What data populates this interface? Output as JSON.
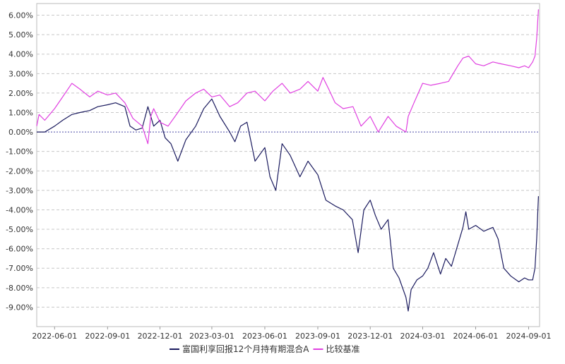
{
  "chart_data": {
    "type": "line",
    "title": "",
    "xlabel": "",
    "ylabel": "",
    "ylim": [
      -10,
      6.6
    ],
    "yticks": [
      6,
      5,
      4,
      3,
      2,
      1,
      0,
      -1,
      -2,
      -3,
      -4,
      -5,
      -6,
      -7,
      -8,
      -9
    ],
    "ytick_labels": [
      "6.00%",
      "5.00%",
      "4.00%",
      "3.00%",
      "2.00%",
      "1.00%",
      "0.00%",
      "-1.00%",
      "-2.00%",
      "-3.00%",
      "-4.00%",
      "-5.00%",
      "-6.00%",
      "-7.00%",
      "-8.00%",
      "-9.00%"
    ],
    "xlim": [
      "2022-05-01",
      "2024-09-20"
    ],
    "xticks": [
      "2022-06-01",
      "2022-09-01",
      "2022-12-01",
      "2023-03-01",
      "2023-06-01",
      "2023-09-01",
      "2023-12-01",
      "2024-03-01",
      "2024-06-01",
      "2024-09-01"
    ],
    "grid": true,
    "zero_line": true,
    "legend_position": "bottom",
    "series": [
      {
        "name": "富国利享回报12个月持有期混合A",
        "color": "#1a1a5e",
        "points": [
          [
            "2022-05-01",
            0.0
          ],
          [
            "2022-05-15",
            0.0
          ],
          [
            "2022-06-01",
            0.3
          ],
          [
            "2022-06-15",
            0.6
          ],
          [
            "2022-07-01",
            0.9
          ],
          [
            "2022-07-15",
            1.0
          ],
          [
            "2022-08-01",
            1.1
          ],
          [
            "2022-08-15",
            1.3
          ],
          [
            "2022-09-01",
            1.4
          ],
          [
            "2022-09-15",
            1.5
          ],
          [
            "2022-10-01",
            1.3
          ],
          [
            "2022-10-10",
            0.3
          ],
          [
            "2022-10-20",
            0.1
          ],
          [
            "2022-10-31",
            0.2
          ],
          [
            "2022-11-10",
            1.3
          ],
          [
            "2022-11-20",
            0.3
          ],
          [
            "2022-12-01",
            0.6
          ],
          [
            "2022-12-10",
            -0.3
          ],
          [
            "2022-12-20",
            -0.6
          ],
          [
            "2023-01-01",
            -1.5
          ],
          [
            "2023-01-15",
            -0.4
          ],
          [
            "2023-02-01",
            0.3
          ],
          [
            "2023-02-15",
            1.2
          ],
          [
            "2023-03-01",
            1.7
          ],
          [
            "2023-03-15",
            0.8
          ],
          [
            "2023-04-01",
            0.0
          ],
          [
            "2023-04-10",
            -0.5
          ],
          [
            "2023-04-20",
            0.3
          ],
          [
            "2023-05-01",
            0.5
          ],
          [
            "2023-05-15",
            -1.5
          ],
          [
            "2023-06-01",
            -0.8
          ],
          [
            "2023-06-10",
            -2.3
          ],
          [
            "2023-06-20",
            -3.0
          ],
          [
            "2023-07-01",
            -0.6
          ],
          [
            "2023-07-15",
            -1.2
          ],
          [
            "2023-08-01",
            -2.3
          ],
          [
            "2023-08-15",
            -1.5
          ],
          [
            "2023-09-01",
            -2.2
          ],
          [
            "2023-09-15",
            -3.5
          ],
          [
            "2023-10-01",
            -3.8
          ],
          [
            "2023-10-15",
            -4.0
          ],
          [
            "2023-10-31",
            -4.5
          ],
          [
            "2023-11-10",
            -6.2
          ],
          [
            "2023-11-20",
            -4.0
          ],
          [
            "2023-12-01",
            -3.5
          ],
          [
            "2023-12-10",
            -4.3
          ],
          [
            "2023-12-20",
            -5.0
          ],
          [
            "2024-01-01",
            -4.5
          ],
          [
            "2024-01-10",
            -7.0
          ],
          [
            "2024-01-20",
            -7.5
          ],
          [
            "2024-02-01",
            -8.5
          ],
          [
            "2024-02-05",
            -9.2
          ],
          [
            "2024-02-10",
            -8.1
          ],
          [
            "2024-02-20",
            -7.6
          ],
          [
            "2024-03-01",
            -7.4
          ],
          [
            "2024-03-10",
            -7.0
          ],
          [
            "2024-03-20",
            -6.2
          ],
          [
            "2024-04-01",
            -7.3
          ],
          [
            "2024-04-10",
            -6.5
          ],
          [
            "2024-04-20",
            -6.9
          ],
          [
            "2024-05-01",
            -5.8
          ],
          [
            "2024-05-10",
            -4.9
          ],
          [
            "2024-05-15",
            -4.1
          ],
          [
            "2024-05-20",
            -5.0
          ],
          [
            "2024-06-01",
            -4.8
          ],
          [
            "2024-06-15",
            -5.1
          ],
          [
            "2024-07-01",
            -4.9
          ],
          [
            "2024-07-10",
            -5.5
          ],
          [
            "2024-07-20",
            -7.0
          ],
          [
            "2024-08-01",
            -7.4
          ],
          [
            "2024-08-15",
            -7.7
          ],
          [
            "2024-08-25",
            -7.5
          ],
          [
            "2024-09-01",
            -7.6
          ],
          [
            "2024-09-08",
            -7.6
          ],
          [
            "2024-09-12",
            -7.0
          ],
          [
            "2024-09-15",
            -5.5
          ],
          [
            "2024-09-18",
            -3.3
          ]
        ]
      },
      {
        "name": "比较基准",
        "color": "#e040e0",
        "points": [
          [
            "2022-05-01",
            0.3
          ],
          [
            "2022-05-05",
            0.9
          ],
          [
            "2022-05-15",
            0.6
          ],
          [
            "2022-06-01",
            1.2
          ],
          [
            "2022-06-15",
            1.8
          ],
          [
            "2022-07-01",
            2.5
          ],
          [
            "2022-07-15",
            2.2
          ],
          [
            "2022-08-01",
            1.8
          ],
          [
            "2022-08-15",
            2.1
          ],
          [
            "2022-09-01",
            1.9
          ],
          [
            "2022-09-15",
            2.0
          ],
          [
            "2022-10-01",
            1.5
          ],
          [
            "2022-10-15",
            0.7
          ],
          [
            "2022-10-31",
            0.3
          ],
          [
            "2022-11-10",
            -0.6
          ],
          [
            "2022-11-15",
            0.8
          ],
          [
            "2022-11-20",
            1.2
          ],
          [
            "2022-12-01",
            0.5
          ],
          [
            "2022-12-15",
            0.3
          ],
          [
            "2023-01-01",
            1.0
          ],
          [
            "2023-01-15",
            1.6
          ],
          [
            "2023-02-01",
            2.0
          ],
          [
            "2023-02-15",
            2.2
          ],
          [
            "2023-03-01",
            1.8
          ],
          [
            "2023-03-15",
            1.9
          ],
          [
            "2023-04-01",
            1.3
          ],
          [
            "2023-04-15",
            1.5
          ],
          [
            "2023-05-01",
            2.0
          ],
          [
            "2023-05-15",
            2.1
          ],
          [
            "2023-06-01",
            1.6
          ],
          [
            "2023-06-15",
            2.1
          ],
          [
            "2023-07-01",
            2.5
          ],
          [
            "2023-07-15",
            2.0
          ],
          [
            "2023-08-01",
            2.2
          ],
          [
            "2023-08-15",
            2.6
          ],
          [
            "2023-09-01",
            2.1
          ],
          [
            "2023-09-10",
            2.8
          ],
          [
            "2023-09-20",
            2.2
          ],
          [
            "2023-10-01",
            1.5
          ],
          [
            "2023-10-15",
            1.2
          ],
          [
            "2023-11-01",
            1.3
          ],
          [
            "2023-11-15",
            0.3
          ],
          [
            "2023-12-01",
            0.8
          ],
          [
            "2023-12-15",
            0.0
          ],
          [
            "2024-01-01",
            0.8
          ],
          [
            "2024-01-15",
            0.3
          ],
          [
            "2024-02-01",
            0.0
          ],
          [
            "2024-02-05",
            0.8
          ],
          [
            "2024-02-15",
            1.5
          ],
          [
            "2024-03-01",
            2.5
          ],
          [
            "2024-03-15",
            2.4
          ],
          [
            "2024-04-01",
            2.5
          ],
          [
            "2024-04-15",
            2.6
          ],
          [
            "2024-05-01",
            3.4
          ],
          [
            "2024-05-10",
            3.8
          ],
          [
            "2024-05-20",
            3.9
          ],
          [
            "2024-06-01",
            3.5
          ],
          [
            "2024-06-15",
            3.4
          ],
          [
            "2024-07-01",
            3.6
          ],
          [
            "2024-07-15",
            3.5
          ],
          [
            "2024-08-01",
            3.4
          ],
          [
            "2024-08-15",
            3.3
          ],
          [
            "2024-08-25",
            3.4
          ],
          [
            "2024-09-01",
            3.3
          ],
          [
            "2024-09-08",
            3.6
          ],
          [
            "2024-09-12",
            3.9
          ],
          [
            "2024-09-15",
            4.8
          ],
          [
            "2024-09-18",
            6.3
          ]
        ]
      }
    ]
  }
}
